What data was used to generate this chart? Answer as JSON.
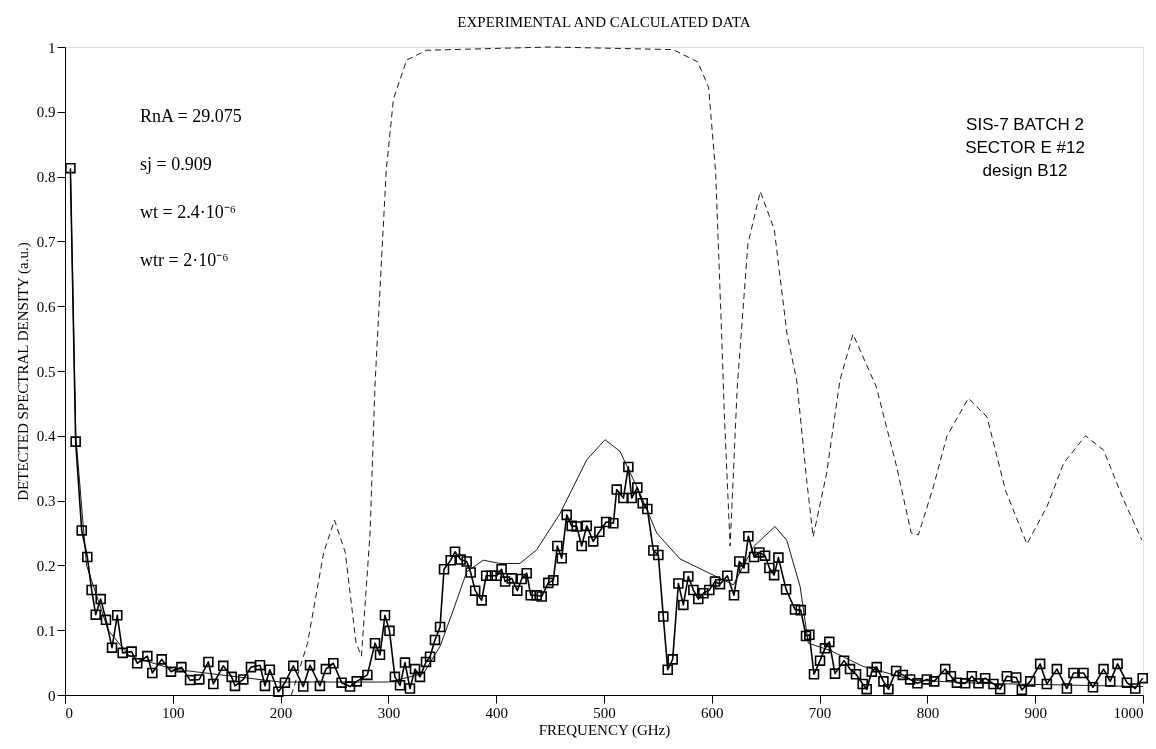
{
  "chart_data": {
    "type": "line",
    "title": "EXPERIMENTAL AND CALCULATED DATA",
    "xlabel": "FREQUENCY (GHz)",
    "ylabel": "DETECTED SPECTRAL DENSITY (a.u.)",
    "xlim": [
      0,
      1000
    ],
    "xticks": [
      0,
      100,
      200,
      300,
      400,
      500,
      600,
      700,
      800,
      900,
      1000
    ],
    "ylim": [
      0,
      1
    ],
    "yticks": [
      0,
      0.1,
      0.2,
      0.3,
      0.4,
      0.5,
      0.6,
      0.7,
      0.8,
      0.9,
      1
    ],
    "grid": false,
    "legend": false,
    "annotations": [
      "RnA = 29.075",
      "sj = 0.909",
      "wt = 2.4·10⁻⁶",
      "wtr = 2·10⁻⁶",
      "SIS-7 BATCH 2",
      "SECTOR E #12",
      "design B12"
    ],
    "series": [
      {
        "color": "#000000",
        "marker": "none",
        "line_style": "dashed",
        "x": [
          210,
          225,
          240,
          250,
          260,
          270,
          275,
          283,
          287.6,
          292,
          298,
          304.7,
          317,
          335.5,
          450,
          564,
          587,
          597,
          603.6,
          608.5,
          611.8,
          617,
          623.6,
          633.5,
          645,
          658,
          669.7,
          678.7,
          688,
          694,
          706.5,
          718.9,
          731,
          752.7,
          771.5,
          785,
          791.6,
          805.5,
          818,
          838,
          855.3,
          872.4,
          892.3,
          911,
          926.5,
          946.6,
          963.4,
          982,
          999
        ],
        "values": [
          0,
          0.08,
          0.22,
          0.27,
          0.22,
          0.08,
          0.06,
          0.25,
          0.48,
          0.62,
          0.81,
          0.92,
          0.98,
          0.995,
          1.0,
          0.996,
          0.977,
          0.938,
          0.806,
          0.585,
          0.426,
          0.23,
          0.475,
          0.696,
          0.777,
          0.718,
          0.558,
          0.486,
          0.332,
          0.244,
          0.342,
          0.486,
          0.557,
          0.475,
          0.352,
          0.25,
          0.247,
          0.321,
          0.399,
          0.458,
          0.429,
          0.316,
          0.233,
          0.291,
          0.358,
          0.4,
          0.378,
          0.301,
          0.239
        ]
      },
      {
        "color": "#000000",
        "marker": "none",
        "line_style": "solid",
        "x": [
          5,
          10,
          20,
          40,
          60,
          100,
          200,
          300,
          332.4,
          347.9,
          360.2,
          372.6,
          388,
          403.5,
          422,
          437.5,
          459.2,
          484,
          501,
          514.8,
          533.4,
          548.9,
          570.5,
          601.4,
          620,
          638.8,
          658.6,
          669.5,
          682,
          689.5,
          709.6,
          740.5,
          786.9,
          848.8,
          1000
        ],
        "values": [
          0.81,
          0.4,
          0.2,
          0.1,
          0.06,
          0.04,
          0.02,
          0.02,
          0.033,
          0.075,
          0.131,
          0.19,
          0.208,
          0.203,
          0.203,
          0.224,
          0.28,
          0.363,
          0.394,
          0.376,
          0.311,
          0.25,
          0.21,
          0.185,
          0.17,
          0.229,
          0.26,
          0.239,
          0.167,
          0.08,
          0.069,
          0.044,
          0.023,
          0.018,
          0.013
        ]
      },
      {
        "color": "#000000",
        "marker": "square",
        "line_style": "solid",
        "x": [
          5,
          9.9,
          15.5,
          20.7,
          24.7,
          28.5,
          33.1,
          38,
          43.6,
          48.5,
          53.5,
          61.8,
          67,
          76.4,
          81,
          89.7,
          98.3,
          108,
          116,
          124.6,
          133,
          137.6,
          146.8,
          154.6,
          157.7,
          165.4,
          172.5,
          180.9,
          185.5,
          190,
          197.9,
          204,
          211.8,
          221,
          227.3,
          236.5,
          242,
          248.9,
          256.6,
          264.4,
          270.6,
          280.5,
          287.6,
          292.2,
          296.8,
          301,
          306,
          310.8,
          315.4,
          320,
          324.7,
          329.3,
          334.9,
          338.6,
          343.2,
          347.9,
          351.6,
          357.8,
          361.8,
          367,
          372.6,
          376.3,
          380.5,
          386.5,
          390.7,
          395.8,
          400.5,
          405,
          408.3,
          414.4,
          419.6,
          423.6,
          428.3,
          432,
          437.5,
          442.2,
          448.3,
          453,
          456.7,
          460.8,
          465.4,
          470,
          474.7,
          479.3,
          484,
          490,
          495.7,
          502,
          508.7,
          511.8,
          518,
          522.6,
          525.7,
          530.9,
          535.9,
          540.2,
          545.8,
          550.4,
          555,
          559.1,
          563.7,
          569,
          573.6,
          578.2,
          582.9,
          587.5,
          592.2,
          597.7,
          603,
          607.6,
          614.4,
          620.6,
          625.5,
          629.9,
          633.9,
          639.2,
          644.1,
          649.4,
          653.4,
          657.8,
          661.8,
          668.9,
          677.2,
          682.5,
          687.4,
          690.5,
          694.8,
          700.4,
          705,
          709,
          714.3,
          722.6,
          728.2,
          733.8,
          740,
          743.7,
          748.4,
          753,
          759.2,
          763.8,
          771,
          777.2,
          784,
          790.8,
          799.5,
          806.3,
          816.5,
          821.8,
          827.4,
          835,
          841.2,
          847.4,
          853.6,
          861.3,
          867.5,
          873.7,
          882.4,
          887.6,
          895.4,
          904.6,
          910.8,
          920.1,
          929.4,
          935.5,
          944.8,
          953.6,
          963.4,
          969.6,
          976.4,
          985.1,
          992.8,
          999.7
        ],
        "values": [
          0.813,
          0.391,
          0.254,
          0.213,
          0.162,
          0.124,
          0.148,
          0.116,
          0.073,
          0.123,
          0.065,
          0.067,
          0.049,
          0.06,
          0.034,
          0.055,
          0.036,
          0.043,
          0.023,
          0.024,
          0.051,
          0.017,
          0.045,
          0.028,
          0.014,
          0.024,
          0.043,
          0.046,
          0.014,
          0.039,
          0.005,
          0.019,
          0.045,
          0.013,
          0.046,
          0.014,
          0.04,
          0.049,
          0.019,
          0.013,
          0.021,
          0.031,
          0.08,
          0.062,
          0.123,
          0.099,
          0.028,
          0.015,
          0.05,
          0.01,
          0.04,
          0.028,
          0.051,
          0.059,
          0.085,
          0.105,
          0.194,
          0.208,
          0.221,
          0.209,
          0.206,
          0.189,
          0.161,
          0.146,
          0.184,
          0.184,
          0.184,
          0.194,
          0.175,
          0.18,
          0.161,
          0.179,
          0.188,
          0.154,
          0.154,
          0.152,
          0.173,
          0.177,
          0.23,
          0.211,
          0.278,
          0.261,
          0.26,
          0.23,
          0.261,
          0.237,
          0.252,
          0.267,
          0.265,
          0.317,
          0.304,
          0.352,
          0.304,
          0.32,
          0.296,
          0.287,
          0.223,
          0.216,
          0.121,
          0.039,
          0.055,
          0.172,
          0.139,
          0.183,
          0.162,
          0.148,
          0.157,
          0.162,
          0.175,
          0.171,
          0.184,
          0.154,
          0.206,
          0.196,
          0.245,
          0.213,
          0.22,
          0.215,
          0.196,
          0.185,
          0.212,
          0.163,
          0.132,
          0.131,
          0.091,
          0.093,
          0.032,
          0.053,
          0.072,
          0.082,
          0.033,
          0.053,
          0.04,
          0.032,
          0.017,
          0.009,
          0.036,
          0.043,
          0.021,
          0.009,
          0.037,
          0.031,
          0.024,
          0.018,
          0.024,
          0.021,
          0.04,
          0.029,
          0.019,
          0.018,
          0.029,
          0.018,
          0.026,
          0.017,
          0.009,
          0.029,
          0.027,
          0.008,
          0.021,
          0.048,
          0.017,
          0.04,
          0.01,
          0.034,
          0.034,
          0.012,
          0.04,
          0.021,
          0.048,
          0.019,
          0.01,
          0.026
        ]
      }
    ]
  }
}
